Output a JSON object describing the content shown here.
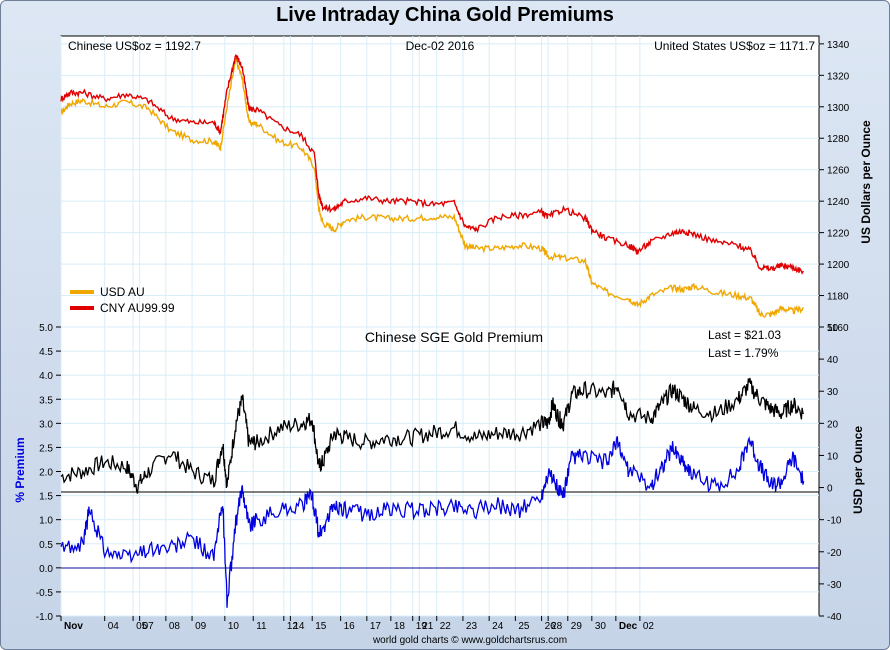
{
  "title": "Live Intraday China Gold Premiums",
  "footer": "world gold charts © www.goldchartsrus.com",
  "chart_data": [
    {
      "type": "line",
      "header_left": "Chinese US$oz = 1192.7",
      "header_center": "Dec-02  2016",
      "header_right": "United States US$oz = 1171.7",
      "ylabel": "US Dollars per Ounce",
      "ylim": [
        1160,
        1345
      ],
      "yticks": [
        "1160",
        "1180",
        "1200",
        "1220",
        "1240",
        "1260",
        "1280",
        "1300",
        "1320",
        "1340"
      ],
      "x_ticks": [
        "Nov",
        "04",
        "05",
        "07",
        "08",
        "09",
        "10",
        "11",
        "12",
        "14",
        "15",
        "16",
        "17",
        "18",
        "19",
        "21",
        "22",
        "23",
        "24",
        "25",
        "26",
        "28",
        "29",
        "30",
        "Dec",
        "02"
      ],
      "legend_position": "bottom-left",
      "series": [
        {
          "name": "USD AU",
          "color": "#f0a800",
          "values": [
            [
              0,
              1296
            ],
            [
              0.4,
              1302
            ],
            [
              1,
              1304
            ],
            [
              2,
              1300
            ],
            [
              3,
              1303
            ],
            [
              4,
              1299
            ],
            [
              5,
              1285
            ],
            [
              6,
              1279
            ],
            [
              7,
              1278
            ],
            [
              7.3,
              1274
            ],
            [
              7.6,
              1300
            ],
            [
              8,
              1330
            ],
            [
              8.3,
              1318
            ],
            [
              8.6,
              1290
            ],
            [
              9,
              1289
            ],
            [
              10,
              1278
            ],
            [
              11,
              1274
            ],
            [
              11.6,
              1262
            ],
            [
              11.8,
              1235
            ],
            [
              12,
              1226
            ],
            [
              12.5,
              1222
            ],
            [
              13,
              1228
            ],
            [
              14,
              1230
            ],
            [
              15,
              1229
            ],
            [
              16,
              1229
            ],
            [
              17,
              1230
            ],
            [
              18,
              1230
            ],
            [
              18.5,
              1212
            ],
            [
              19,
              1210
            ],
            [
              20,
              1210
            ],
            [
              21,
              1212
            ],
            [
              22,
              1210
            ],
            [
              22.3,
              1205
            ],
            [
              23,
              1204
            ],
            [
              24,
              1202
            ],
            [
              24.3,
              1188
            ],
            [
              25,
              1182
            ],
            [
              26,
              1178
            ],
            [
              26.4,
              1174
            ],
            [
              27,
              1180
            ],
            [
              28,
              1185
            ],
            [
              28.5,
              1184
            ],
            [
              29,
              1186
            ],
            [
              30,
              1182
            ],
            [
              31,
              1180
            ],
            [
              31.6,
              1178
            ],
            [
              32,
              1168
            ],
            [
              32.5,
              1168
            ],
            [
              33,
              1172
            ],
            [
              33.5,
              1170
            ],
            [
              34,
              1172
            ]
          ]
        },
        {
          "name": "CNY AU99.99",
          "color": "#e00000",
          "values": [
            [
              0,
              1305
            ],
            [
              0.4,
              1309
            ],
            [
              1,
              1309
            ],
            [
              2,
              1305
            ],
            [
              3,
              1308
            ],
            [
              4,
              1304
            ],
            [
              5,
              1293
            ],
            [
              6,
              1290
            ],
            [
              7,
              1290
            ],
            [
              7.3,
              1284
            ],
            [
              7.6,
              1310
            ],
            [
              8,
              1333
            ],
            [
              8.3,
              1325
            ],
            [
              8.6,
              1299
            ],
            [
              9,
              1298
            ],
            [
              10,
              1288
            ],
            [
              11,
              1282
            ],
            [
              11.6,
              1270
            ],
            [
              11.8,
              1244
            ],
            [
              12,
              1236
            ],
            [
              12.5,
              1235
            ],
            [
              13,
              1240
            ],
            [
              14,
              1242
            ],
            [
              15,
              1240
            ],
            [
              16,
              1240
            ],
            [
              17,
              1238
            ],
            [
              18,
              1239
            ],
            [
              18.5,
              1224
            ],
            [
              19,
              1222
            ],
            [
              20,
              1230
            ],
            [
              21,
              1231
            ],
            [
              22,
              1233
            ],
            [
              22.3,
              1230
            ],
            [
              23,
              1235
            ],
            [
              24,
              1229
            ],
            [
              24.3,
              1222
            ],
            [
              25,
              1216
            ],
            [
              26,
              1212
            ],
            [
              26.4,
              1208
            ],
            [
              27,
              1214
            ],
            [
              28,
              1220
            ],
            [
              28.5,
              1221
            ],
            [
              29,
              1219
            ],
            [
              30,
              1214
            ],
            [
              31,
              1212
            ],
            [
              31.6,
              1208
            ],
            [
              32,
              1198
            ],
            [
              32.5,
              1197
            ],
            [
              33,
              1199
            ],
            [
              33.5,
              1198
            ],
            [
              34,
              1195
            ]
          ]
        }
      ]
    },
    {
      "type": "line",
      "title": "Chinese SGE Gold Premium",
      "annotation_1": "Last = $21.03",
      "annotation_2": "Last = 1.79%",
      "ylabel_left": "% Premium",
      "ylabel_right": "USD per Ounce",
      "ylim_left": [
        -1.0,
        5.0
      ],
      "ylim_right": [
        -40,
        50
      ],
      "yticks_left": [
        "-1.0",
        "-0.5",
        "0.0",
        "0.5",
        "1.0",
        "1.5",
        "2.0",
        "2.5",
        "3.0",
        "3.5",
        "4.0",
        "4.5",
        "5.0"
      ],
      "yticks_right": [
        "-40",
        "-30",
        "-20",
        "-10",
        "0",
        "10",
        "20",
        "30",
        "40",
        "50"
      ],
      "series": [
        {
          "name": "",
          "color": "#000000",
          "axis": "left",
          "values": [
            [
              0,
              1.9
            ],
            [
              1,
              2.0
            ],
            [
              2,
              2.2
            ],
            [
              3,
              2.1
            ],
            [
              3.5,
              1.7
            ],
            [
              4,
              2.0
            ],
            [
              5,
              2.4
            ],
            [
              6,
              2.0
            ],
            [
              7,
              1.8
            ],
            [
              7.4,
              2.6
            ],
            [
              7.6,
              1.7
            ],
            [
              8,
              3.0
            ],
            [
              8.3,
              3.5
            ],
            [
              8.6,
              2.6
            ],
            [
              9,
              2.6
            ],
            [
              10,
              2.9
            ],
            [
              11,
              3.0
            ],
            [
              11.5,
              3.1
            ],
            [
              11.8,
              2.1
            ],
            [
              12,
              2.2
            ],
            [
              12.5,
              2.8
            ],
            [
              13,
              2.7
            ],
            [
              14,
              2.6
            ],
            [
              15,
              2.7
            ],
            [
              16,
              2.7
            ],
            [
              17,
              2.8
            ],
            [
              18,
              2.9
            ],
            [
              19,
              2.7
            ],
            [
              20,
              2.8
            ],
            [
              21,
              2.8
            ],
            [
              22,
              3.0
            ],
            [
              22.3,
              3.0
            ],
            [
              22.5,
              3.4
            ],
            [
              22.8,
              3.1
            ],
            [
              23,
              3.0
            ],
            [
              23.4,
              3.6
            ],
            [
              24,
              3.7
            ],
            [
              25,
              3.6
            ],
            [
              25.5,
              3.8
            ],
            [
              26,
              3.2
            ],
            [
              27,
              3.1
            ],
            [
              27.5,
              3.4
            ],
            [
              28,
              3.7
            ],
            [
              28.5,
              3.5
            ],
            [
              29,
              3.3
            ],
            [
              30,
              3.2
            ],
            [
              31,
              3.5
            ],
            [
              31.5,
              3.8
            ],
            [
              32,
              3.5
            ],
            [
              32.5,
              3.3
            ],
            [
              33,
              3.2
            ],
            [
              33.5,
              3.4
            ],
            [
              34,
              3.2
            ]
          ]
        },
        {
          "name": "",
          "color": "#0000e0",
          "axis": "left",
          "values": [
            [
              0,
              0.4
            ],
            [
              1,
              0.5
            ],
            [
              1.3,
              1.2
            ],
            [
              2,
              0.4
            ],
            [
              3,
              0.2
            ],
            [
              4,
              0.4
            ],
            [
              5,
              0.4
            ],
            [
              6,
              0.6
            ],
            [
              7,
              0.2
            ],
            [
              7.4,
              1.4
            ],
            [
              7.6,
              -0.7
            ],
            [
              8,
              0.9
            ],
            [
              8.3,
              1.7
            ],
            [
              8.6,
              0.9
            ],
            [
              9,
              1.0
            ],
            [
              10,
              1.2
            ],
            [
              11,
              1.3
            ],
            [
              11.5,
              1.5
            ],
            [
              11.8,
              0.7
            ],
            [
              12,
              0.8
            ],
            [
              12.5,
              1.3
            ],
            [
              13,
              1.2
            ],
            [
              14,
              1.1
            ],
            [
              15,
              1.2
            ],
            [
              16,
              1.2
            ],
            [
              17,
              1.2
            ],
            [
              18,
              1.3
            ],
            [
              19,
              1.2
            ],
            [
              20,
              1.3
            ],
            [
              21,
              1.2
            ],
            [
              22,
              1.5
            ],
            [
              22.3,
              2.0
            ],
            [
              22.8,
              1.6
            ],
            [
              23,
              1.5
            ],
            [
              23.4,
              2.3
            ],
            [
              24,
              2.3
            ],
            [
              25,
              2.2
            ],
            [
              25.5,
              2.6
            ],
            [
              26,
              2.0
            ],
            [
              27,
              1.7
            ],
            [
              27.5,
              2.1
            ],
            [
              28,
              2.5
            ],
            [
              28.5,
              2.2
            ],
            [
              29,
              1.9
            ],
            [
              30,
              1.7
            ],
            [
              31,
              2.0
            ],
            [
              31.5,
              2.7
            ],
            [
              32,
              2.1
            ],
            [
              32.5,
              1.7
            ],
            [
              33,
              1.8
            ],
            [
              33.5,
              2.3
            ],
            [
              34,
              1.8
            ]
          ]
        }
      ]
    }
  ]
}
